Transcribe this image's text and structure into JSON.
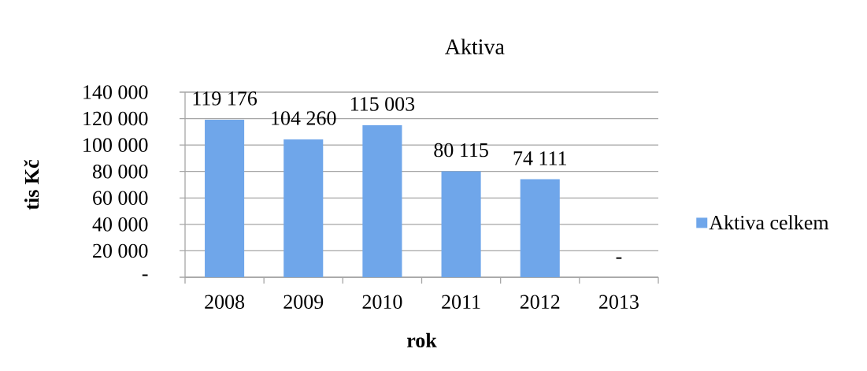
{
  "chart_data": {
    "type": "bar",
    "title": "Aktiva",
    "xlabel": "rok",
    "ylabel": "tis Kč",
    "categories": [
      "2008",
      "2009",
      "2010",
      "2011",
      "2012",
      "2013"
    ],
    "series": [
      {
        "name": "Aktiva celkem",
        "color": "#6fa6ea",
        "values": [
          119176,
          104260,
          115003,
          80115,
          74111,
          0
        ],
        "value_labels": [
          "119 176",
          "104 260",
          "115 003",
          "80 115",
          "74 111",
          "-"
        ]
      }
    ],
    "ylim": [
      0,
      140000
    ],
    "yticks": [
      {
        "value": 0,
        "label": "-"
      },
      {
        "value": 20000,
        "label": "20 000"
      },
      {
        "value": 40000,
        "label": "40 000"
      },
      {
        "value": 60000,
        "label": "60 000"
      },
      {
        "value": 80000,
        "label": "80 000"
      },
      {
        "value": 100000,
        "label": "100 000"
      },
      {
        "value": 120000,
        "label": "120 000"
      },
      {
        "value": 140000,
        "label": "140 000"
      }
    ],
    "grid": "y",
    "legend": "right"
  }
}
